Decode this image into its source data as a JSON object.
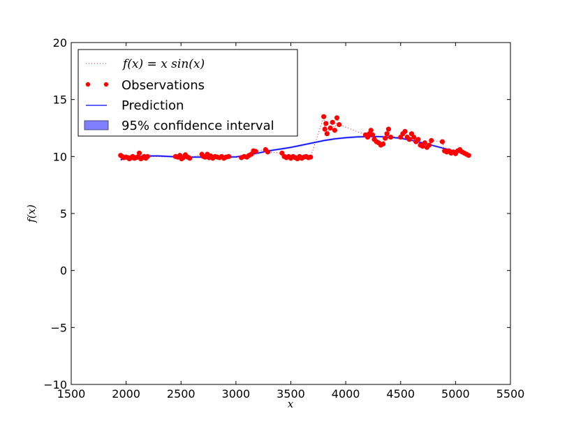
{
  "chart_data": {
    "type": "line",
    "title": "",
    "xlabel": "x",
    "ylabel": "f(x)",
    "xlim": [
      1500,
      5500
    ],
    "ylim": [
      -10,
      20
    ],
    "xticks": [
      "1500",
      "2000",
      "2500",
      "3000",
      "3500",
      "4000",
      "4500",
      "5000",
      "5500"
    ],
    "yticks": [
      "−10",
      "−5",
      "0",
      "5",
      "10",
      "15",
      "20"
    ],
    "grid": false,
    "legend_position": "top-left",
    "legend": [
      {
        "label": "f(x) = x sin(x)",
        "style": "dotted-line",
        "color": "#ff0000"
      },
      {
        "label": "Observations",
        "style": "marker",
        "color": "#ff0000"
      },
      {
        "label": "Prediction",
        "style": "line",
        "color": "#0000ff"
      },
      {
        "label": "95% confidence interval",
        "style": "patch",
        "color": "#8080ff"
      }
    ],
    "series": [
      {
        "name": "Observations",
        "kind": "scatter+dotted",
        "color": "#ff0000",
        "points": [
          [
            1950,
            10.1
          ],
          [
            1965,
            10.0
          ],
          [
            1980,
            9.9
          ],
          [
            2000,
            9.95
          ],
          [
            2015,
            9.9
          ],
          [
            2030,
            9.8
          ],
          [
            2045,
            9.9
          ],
          [
            2060,
            10.0
          ],
          [
            2075,
            9.85
          ],
          [
            2090,
            9.9
          ],
          [
            2105,
            9.95
          ],
          [
            2120,
            10.3
          ],
          [
            2135,
            9.8
          ],
          [
            2150,
            9.9
          ],
          [
            2165,
            10.0
          ],
          [
            2180,
            9.85
          ],
          [
            2195,
            10.0
          ],
          [
            2450,
            10.0
          ],
          [
            2470,
            9.95
          ],
          [
            2490,
            10.1
          ],
          [
            2505,
            9.8
          ],
          [
            2520,
            9.9
          ],
          [
            2540,
            10.15
          ],
          [
            2560,
            9.95
          ],
          [
            2580,
            9.85
          ],
          [
            2690,
            10.2
          ],
          [
            2705,
            10.0
          ],
          [
            2720,
            9.95
          ],
          [
            2740,
            10.2
          ],
          [
            2755,
            9.9
          ],
          [
            2770,
            10.05
          ],
          [
            2790,
            9.85
          ],
          [
            2810,
            10.0
          ],
          [
            2830,
            9.95
          ],
          [
            2850,
            9.9
          ],
          [
            2870,
            10.0
          ],
          [
            2890,
            9.85
          ],
          [
            2910,
            9.95
          ],
          [
            2935,
            10.0
          ],
          [
            3050,
            9.9
          ],
          [
            3075,
            10.0
          ],
          [
            3100,
            9.95
          ],
          [
            3120,
            10.1
          ],
          [
            3140,
            10.2
          ],
          [
            3160,
            10.5
          ],
          [
            3180,
            10.45
          ],
          [
            3270,
            10.6
          ],
          [
            3290,
            10.4
          ],
          [
            3420,
            10.3
          ],
          [
            3440,
            10.0
          ],
          [
            3460,
            9.9
          ],
          [
            3480,
            10.0
          ],
          [
            3500,
            9.85
          ],
          [
            3520,
            10.0
          ],
          [
            3540,
            9.9
          ],
          [
            3560,
            9.8
          ],
          [
            3580,
            10.0
          ],
          [
            3600,
            9.85
          ],
          [
            3620,
            9.95
          ],
          [
            3640,
            10.0
          ],
          [
            3660,
            9.9
          ],
          [
            3680,
            9.95
          ],
          [
            3800,
            13.5
          ],
          [
            3810,
            12.4
          ],
          [
            3820,
            12.9
          ],
          [
            3830,
            12.0
          ],
          [
            3860,
            12.5
          ],
          [
            3880,
            13.0
          ],
          [
            3900,
            12.3
          ],
          [
            3920,
            13.4
          ],
          [
            3940,
            12.8
          ],
          [
            4180,
            11.9
          ],
          [
            4200,
            11.7
          ],
          [
            4215,
            12.0
          ],
          [
            4230,
            12.3
          ],
          [
            4245,
            11.9
          ],
          [
            4260,
            11.5
          ],
          [
            4280,
            11.3
          ],
          [
            4300,
            11.2
          ],
          [
            4320,
            11.0
          ],
          [
            4340,
            11.1
          ],
          [
            4360,
            11.6
          ],
          [
            4375,
            12.0
          ],
          [
            4390,
            12.4
          ],
          [
            4410,
            11.7
          ],
          [
            4500,
            11.7
          ],
          [
            4520,
            12.0
          ],
          [
            4540,
            12.2
          ],
          [
            4560,
            11.7
          ],
          [
            4580,
            11.5
          ],
          [
            4600,
            12.0
          ],
          [
            4620,
            11.7
          ],
          [
            4640,
            11.3
          ],
          [
            4660,
            11.5
          ],
          [
            4680,
            11.0
          ],
          [
            4700,
            10.9
          ],
          [
            4720,
            11.2
          ],
          [
            4740,
            10.8
          ],
          [
            4760,
            11.0
          ],
          [
            4780,
            11.4
          ],
          [
            4880,
            11.3
          ],
          [
            4900,
            10.5
          ],
          [
            4920,
            10.4
          ],
          [
            4940,
            10.5
          ],
          [
            4960,
            10.3
          ],
          [
            4980,
            10.4
          ],
          [
            5000,
            10.25
          ],
          [
            5020,
            10.5
          ],
          [
            5040,
            10.6
          ],
          [
            5060,
            10.4
          ],
          [
            5080,
            10.3
          ],
          [
            5100,
            10.2
          ],
          [
            5120,
            10.1
          ]
        ]
      },
      {
        "name": "Prediction",
        "kind": "line",
        "color": "#0000ff",
        "points": [
          [
            1950,
            9.7
          ],
          [
            2000,
            9.9
          ],
          [
            2100,
            10.0
          ],
          [
            2200,
            10.05
          ],
          [
            2300,
            10.05
          ],
          [
            2400,
            10.0
          ],
          [
            2500,
            9.95
          ],
          [
            2600,
            9.95
          ],
          [
            2700,
            9.95
          ],
          [
            2800,
            9.95
          ],
          [
            2900,
            9.95
          ],
          [
            3000,
            9.97
          ],
          [
            3100,
            10.1
          ],
          [
            3200,
            10.3
          ],
          [
            3300,
            10.5
          ],
          [
            3400,
            10.65
          ],
          [
            3500,
            10.8
          ],
          [
            3600,
            11.0
          ],
          [
            3700,
            11.2
          ],
          [
            3800,
            11.4
          ],
          [
            3900,
            11.55
          ],
          [
            4000,
            11.65
          ],
          [
            4100,
            11.72
          ],
          [
            4200,
            11.75
          ],
          [
            4300,
            11.75
          ],
          [
            4400,
            11.7
          ],
          [
            4500,
            11.6
          ],
          [
            4600,
            11.42
          ],
          [
            4700,
            11.2
          ],
          [
            4800,
            10.95
          ],
          [
            4900,
            10.7
          ],
          [
            5000,
            10.45
          ],
          [
            5100,
            10.2
          ],
          [
            5125,
            10.15
          ]
        ]
      },
      {
        "name": "95% confidence interval",
        "kind": "band",
        "color": "#8080ff",
        "half_width": 0.1
      }
    ]
  }
}
